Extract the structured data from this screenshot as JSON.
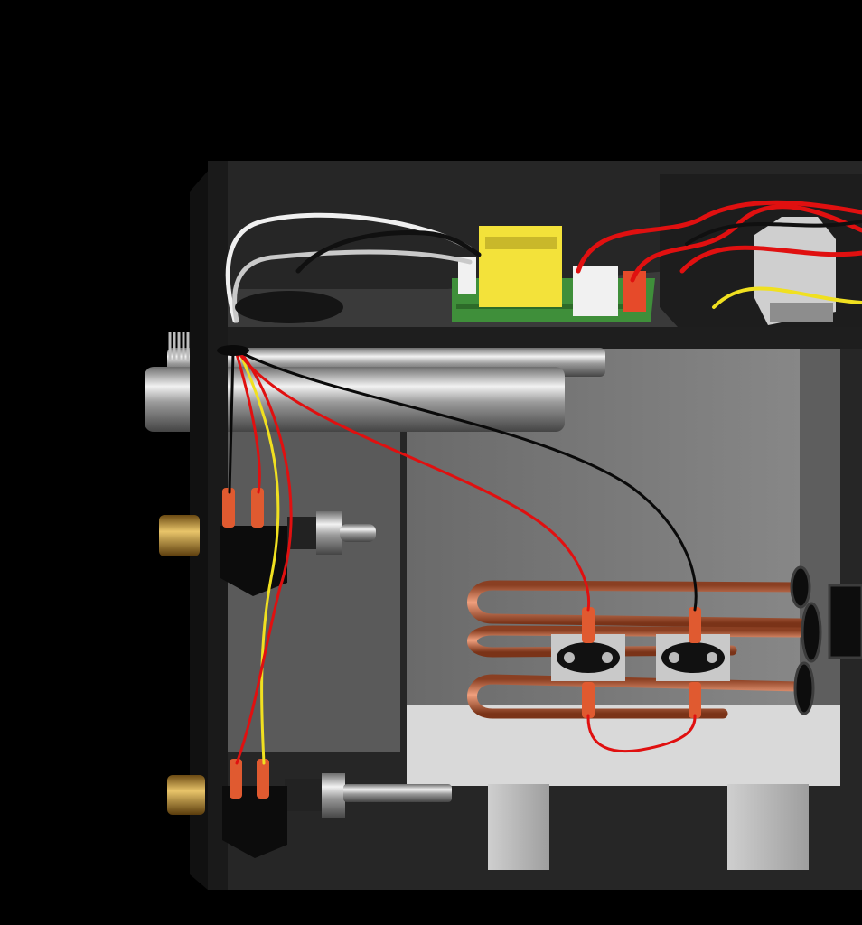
{
  "scene": {
    "subject": "steam-generator-cutaway-render",
    "background_color": "#000000",
    "wire_colors": {
      "red": "#e01010",
      "yellow": "#f0e020",
      "black": "#0a0a0a",
      "white": "#f0f0f0"
    },
    "pipe_color": "#d2785a",
    "board_color": "#3f8f3a",
    "transformer_color": "#f3e23a",
    "fitting_color": "#c89a3c"
  }
}
